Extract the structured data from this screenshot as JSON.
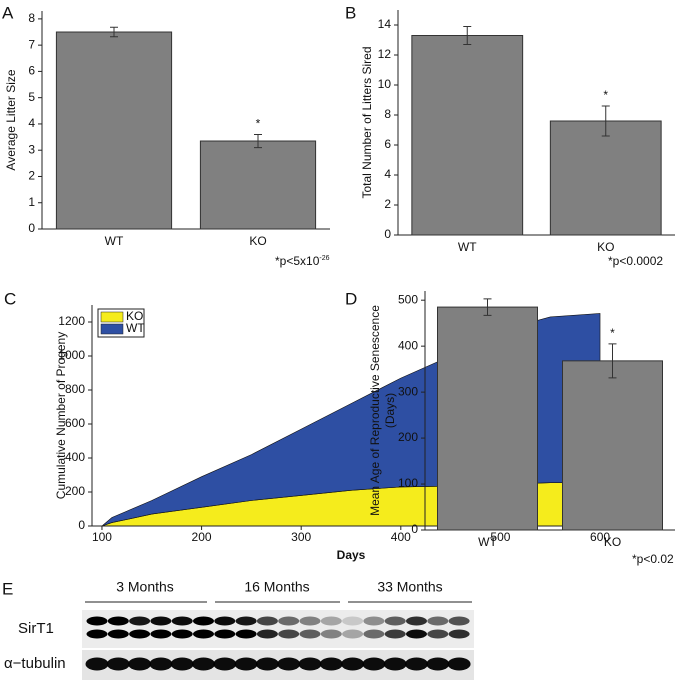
{
  "chart_data": [
    {
      "panel": "A",
      "type": "bar",
      "y_label": [
        "Average Litter Size"
      ],
      "categories": [
        "WT",
        "KO"
      ],
      "values": [
        7.5,
        3.35
      ],
      "errors": [
        0.18,
        0.25
      ],
      "color": "#808080",
      "ylim": [
        0,
        8.3
      ],
      "yticks": [
        0,
        1,
        2,
        3,
        4,
        5,
        6,
        7,
        8
      ],
      "annotation": {
        "text": "*",
        "category": "KO"
      },
      "footnote": {
        "base": "*p<5x10",
        "exponent": "-26"
      }
    },
    {
      "panel": "B",
      "type": "bar",
      "y_label": [
        "Total Number of Litters Sired"
      ],
      "categories": [
        "WT",
        "KO"
      ],
      "values": [
        13.3,
        7.6
      ],
      "errors": [
        0.6,
        1.0
      ],
      "color": "#808080",
      "ylim": [
        0,
        15
      ],
      "yticks": [
        0,
        2,
        4,
        6,
        8,
        10,
        12,
        14
      ],
      "annotation": {
        "text": "*",
        "category": "KO"
      },
      "footnote": {
        "base": "*p<0.0002"
      }
    },
    {
      "panel": "C",
      "type": "area",
      "stacked": true,
      "x_label": "Days",
      "y_label": [
        "Cumulative Number of Progeny"
      ],
      "x": [
        100,
        110,
        150,
        200,
        250,
        300,
        350,
        400,
        450,
        500,
        550,
        600
      ],
      "series": [
        {
          "name": "KO",
          "color": "#f5ec1c",
          "values": [
            0,
            20,
            70,
            110,
            150,
            180,
            210,
            230,
            235,
            245,
            255,
            255
          ]
        },
        {
          "name": "WT",
          "color": "#2e4fa3",
          "values": [
            0,
            30,
            80,
            180,
            270,
            390,
            510,
            640,
            765,
            905,
            975,
            995
          ]
        }
      ],
      "xlim": [
        90,
        610
      ],
      "xticks": [
        100,
        200,
        300,
        400,
        500,
        600
      ],
      "ylim": [
        0,
        1300
      ],
      "yticks": [
        0,
        200,
        400,
        600,
        800,
        1000,
        1200
      ],
      "legend": "upper-left"
    },
    {
      "panel": "D",
      "type": "bar",
      "y_label": [
        "Mean Age of Reproductive Senescence",
        "(Days)"
      ],
      "categories": [
        "WT",
        "KO"
      ],
      "values": [
        485,
        368
      ],
      "errors": [
        18,
        37
      ],
      "color": "#808080",
      "ylim": [
        0,
        520
      ],
      "yticks": [
        0,
        100,
        200,
        300,
        400,
        500
      ],
      "annotation": {
        "text": "*",
        "category": "KO"
      },
      "footnote": {
        "base": "*p<0.02"
      }
    }
  ],
  "blot": {
    "panel": "E",
    "groups": [
      "3 Months",
      "16 Months",
      "33 Months"
    ],
    "rows": [
      "SirT1",
      "α−tubulin"
    ]
  }
}
